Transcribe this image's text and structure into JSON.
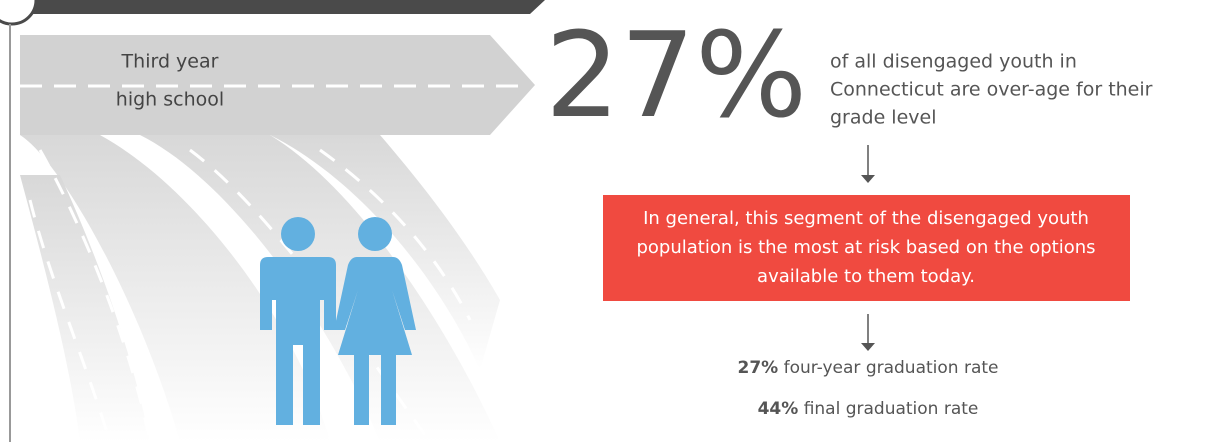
{
  "road": {
    "label_lines": [
      "Third year",
      "high school"
    ]
  },
  "highlight": {
    "figure": "27%",
    "description_lines": [
      "of all disengaged youth in",
      "Connecticut are over-age for their",
      "grade level"
    ]
  },
  "callout": {
    "lines": [
      "In general, this segment of the disengaged youth",
      "population is the most at risk based on the options",
      "available to them today."
    ]
  },
  "stats": [
    {
      "figure": "27%",
      "label": "four-year graduation rate"
    },
    {
      "figure": "44%",
      "label": "final graduation rate"
    }
  ]
}
